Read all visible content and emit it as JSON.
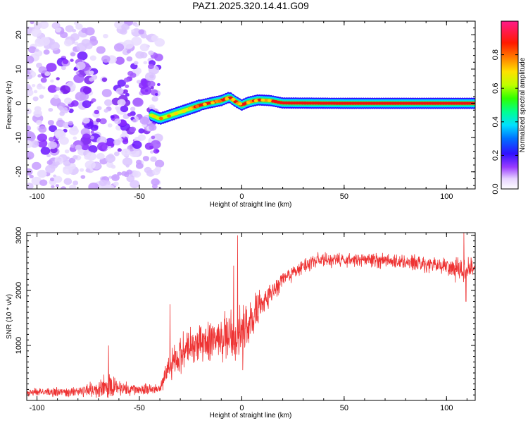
{
  "chart_data": [
    {
      "type": "heatmap",
      "title": "PAZ1.2025.320.14.41.G09",
      "xlabel": "Height of straight line (km)",
      "ylabel": "Frequency (Hz)",
      "xlim": [
        -105,
        114
      ],
      "ylim": [
        -25,
        24
      ],
      "xticks": [
        -100,
        -50,
        0,
        50,
        100
      ],
      "yticks": [
        -20,
        -10,
        0,
        10,
        20
      ],
      "colorbar": {
        "label": "Normalized spectral amplitude",
        "range": [
          0,
          1
        ],
        "ticks": [
          0.0,
          0.2,
          0.4,
          0.6,
          0.8
        ],
        "colormap": "rainbow (white-purple-blue-cyan-green-yellow-orange-red-magenta)"
      },
      "features": {
        "low_snr_region": {
          "x_range": [
            -105,
            -40
          ],
          "description": "scattered low-amplitude noise across all frequencies"
        },
        "signal_track": [
          {
            "x": -44,
            "f": -3.5
          },
          {
            "x": -40,
            "f": -4.5
          },
          {
            "x": -35,
            "f": -3.5
          },
          {
            "x": -30,
            "f": -2.5
          },
          {
            "x": -25,
            "f": -1.5
          },
          {
            "x": -20,
            "f": -0.5
          },
          {
            "x": -15,
            "f": 0.2
          },
          {
            "x": -10,
            "f": 0.8
          },
          {
            "x": -6,
            "f": 1.8
          },
          {
            "x": -3,
            "f": 0.5
          },
          {
            "x": 0,
            "f": -0.5
          },
          {
            "x": 3,
            "f": 0.3
          },
          {
            "x": 8,
            "f": 1.0
          },
          {
            "x": 14,
            "f": 0.8
          },
          {
            "x": 20,
            "f": 0.1
          },
          {
            "x": 50,
            "f": 0.0
          },
          {
            "x": 80,
            "f": 0.0
          },
          {
            "x": 114,
            "f": 0.0
          }
        ]
      }
    },
    {
      "type": "line",
      "xlabel": "Height of straight line (km)",
      "ylabel": "SNR (10 * v/v)",
      "xlim": [
        -105,
        114
      ],
      "ylim": [
        0,
        3050
      ],
      "xticks": [
        -100,
        -50,
        0,
        50,
        100
      ],
      "yticks": [
        1000,
        2000,
        3000
      ],
      "series": [
        {
          "name": "SNR",
          "color": "#ee3333",
          "envelope": [
            {
              "x": -105,
              "y": 150,
              "noise": 90
            },
            {
              "x": -80,
              "y": 160,
              "noise": 110
            },
            {
              "x": -65,
              "y": 260,
              "noise": 260
            },
            {
              "x": -55,
              "y": 200,
              "noise": 140
            },
            {
              "x": -40,
              "y": 200,
              "noise": 120
            },
            {
              "x": -37,
              "y": 480,
              "noise": 300
            },
            {
              "x": -30,
              "y": 850,
              "noise": 420
            },
            {
              "x": -20,
              "y": 1050,
              "noise": 450
            },
            {
              "x": -10,
              "y": 1100,
              "noise": 500
            },
            {
              "x": 0,
              "y": 1200,
              "noise": 700
            },
            {
              "x": 10,
              "y": 1750,
              "noise": 300
            },
            {
              "x": 20,
              "y": 2200,
              "noise": 200
            },
            {
              "x": 35,
              "y": 2550,
              "noise": 160
            },
            {
              "x": 70,
              "y": 2550,
              "noise": 160
            },
            {
              "x": 100,
              "y": 2450,
              "noise": 180
            },
            {
              "x": 108,
              "y": 2350,
              "noise": 350
            },
            {
              "x": 114,
              "y": 2450,
              "noise": 140
            }
          ],
          "spikes": [
            {
              "x": -65,
              "y": 1000
            },
            {
              "x": -35,
              "y": 1750
            },
            {
              "x": -4,
              "y": 2450
            },
            {
              "x": -2,
              "y": 3000
            },
            {
              "x": 0.5,
              "y": 550
            },
            {
              "x": 108.5,
              "y": 3050
            },
            {
              "x": 109.5,
              "y": 1800
            }
          ]
        }
      ]
    }
  ]
}
